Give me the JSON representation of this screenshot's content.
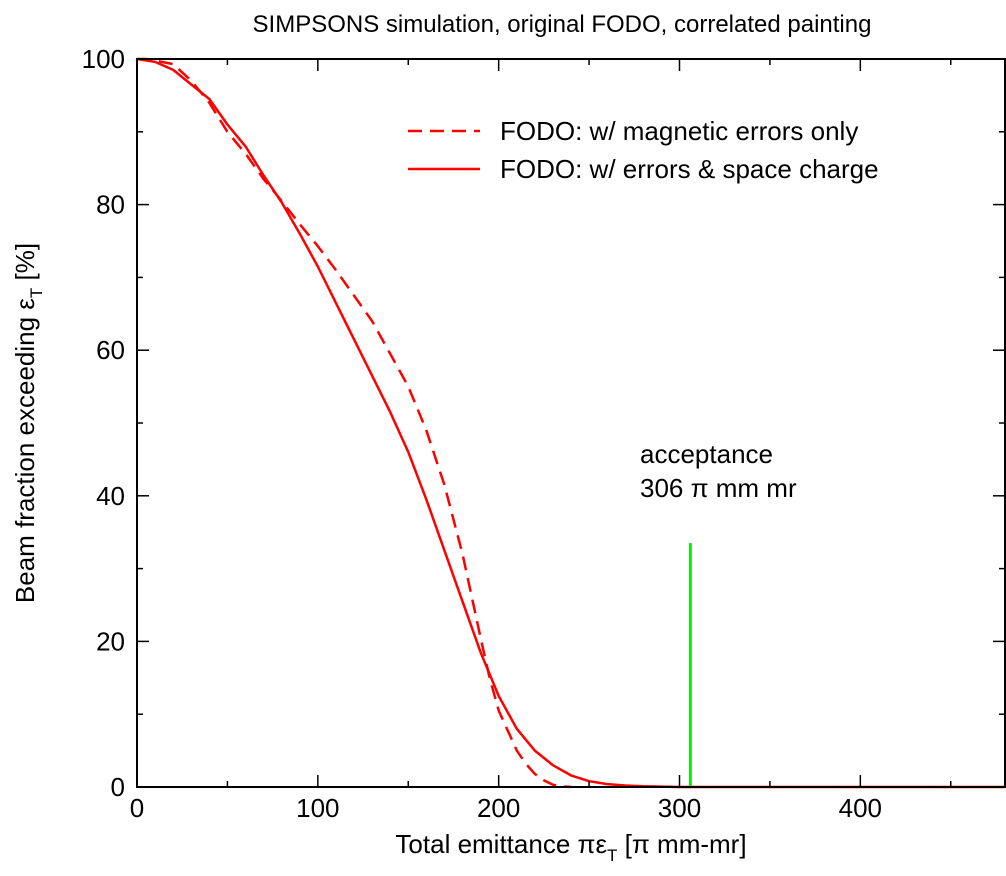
{
  "chart_data": {
    "type": "line",
    "title": "SIMPSONS simulation, original FODO, correlated painting",
    "xlabel": {
      "pre": "Total emittance πε",
      "sub": "T",
      "post": " [π mm-mr]"
    },
    "ylabel": {
      "pre": "Beam fraction exceeding ε",
      "sub": "T",
      "post": " [%]"
    },
    "xlim": [
      0,
      480
    ],
    "ylim": [
      0,
      100
    ],
    "xticks": [
      0,
      100,
      200,
      300,
      400
    ],
    "yticks": [
      0,
      20,
      40,
      60,
      80,
      100
    ],
    "grid": false,
    "legend_position": "top-right",
    "series": [
      {
        "name": "FODO: w/ magnetic errors only",
        "style": "dashed",
        "color": "#ff0000",
        "x": [
          0,
          5,
          10,
          20,
          30,
          40,
          50,
          60,
          70,
          80,
          90,
          100,
          110,
          120,
          130,
          140,
          150,
          160,
          170,
          180,
          190,
          195,
          200,
          210,
          215,
          220,
          225,
          230,
          235,
          240
        ],
        "y": [
          100,
          100,
          99.8,
          99.3,
          97,
          94,
          90,
          87,
          83.5,
          80.5,
          77.3,
          74.3,
          71,
          67.5,
          64,
          59.5,
          55,
          49,
          41.5,
          32,
          20.5,
          15,
          10.5,
          5,
          3.2,
          1.8,
          0.9,
          0.3,
          0.1,
          0
        ]
      },
      {
        "name": "FODO: w/ errors & space charge",
        "style": "solid",
        "color": "#ff0000",
        "x": [
          0,
          10,
          20,
          30,
          40,
          50,
          60,
          70,
          80,
          90,
          100,
          110,
          120,
          130,
          140,
          150,
          160,
          170,
          180,
          190,
          200,
          210,
          220,
          230,
          240,
          250,
          260,
          270,
          280,
          290,
          300,
          310,
          480
        ],
        "y": [
          100,
          99.6,
          98.5,
          96.5,
          94.5,
          91,
          88,
          84,
          80.3,
          76,
          71.5,
          66.5,
          61.5,
          56.5,
          51.5,
          46,
          39.5,
          32.5,
          25.5,
          18.5,
          12.5,
          8,
          5,
          3,
          1.6,
          0.8,
          0.4,
          0.2,
          0.1,
          0.05,
          0,
          0,
          0
        ]
      }
    ],
    "annotation": {
      "lines": [
        "acceptance",
        "306 π mm mr"
      ],
      "marker_x": 306,
      "marker_y_top": 33.5,
      "marker_color": "#00ee00"
    }
  }
}
